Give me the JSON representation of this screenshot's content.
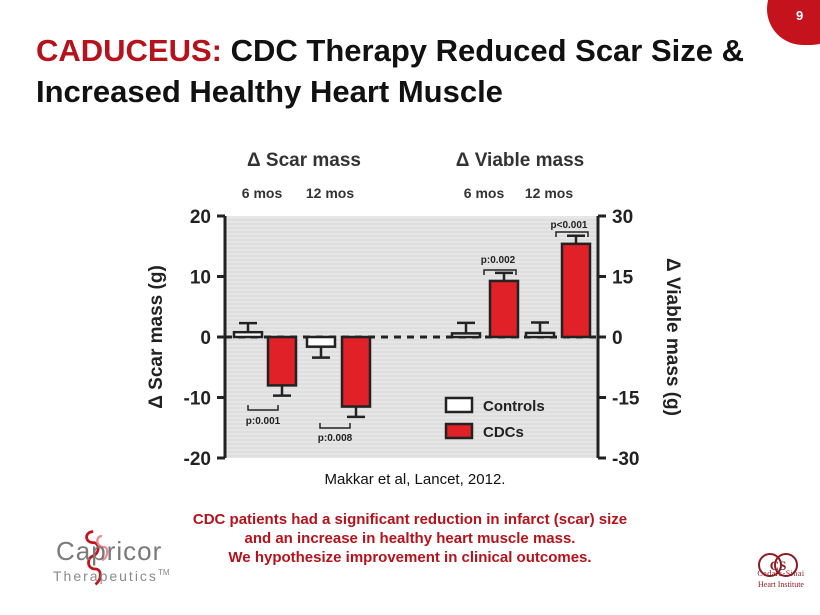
{
  "page_number": "9",
  "title": {
    "accent": "CADUCEUS:",
    "rest": "CDC Therapy Reduced Scar Size & Increased Healthy Heart Muscle"
  },
  "citation": "Makkar et al, Lancet, 2012.",
  "summary": {
    "line1": "CDC patients had a significant reduction in infarct (scar) size",
    "line2": "and an increase in healthy heart muscle mass.",
    "line3": "We hypothesize improvement in clinical outcomes."
  },
  "logos": {
    "left_name": "Capricor",
    "left_sub": "Therapeutics",
    "left_tm": "TM",
    "right_mark": "CS",
    "right_line1": "Cedars-Sinai",
    "right_line2": "Heart Institute"
  },
  "colors": {
    "accent": "#b5121b",
    "cdc": "#e02128",
    "controls": "#ffffff",
    "plot_bg": "#e6e6e6"
  },
  "chart_data": {
    "type": "bar",
    "group_titles": [
      "Δ Scar mass",
      "Δ Viable mass"
    ],
    "categories": [
      "6 mos",
      "12 mos",
      "6 mos",
      "12 mos"
    ],
    "left_axis": {
      "label": "Δ Scar mass  (g)",
      "range": [
        -20,
        20
      ],
      "ticks": [
        20,
        10,
        0,
        -10,
        -20
      ]
    },
    "right_axis": {
      "label": "Δ Viable mass  (g)",
      "range": [
        -30,
        30
      ],
      "ticks": [
        30,
        15,
        0,
        -15,
        -30
      ]
    },
    "series": [
      {
        "name": "Controls",
        "values": [
          0.8,
          -1.6,
          0.9,
          1.0
        ],
        "errors": [
          1.5,
          1.8,
          2.6,
          2.6
        ]
      },
      {
        "name": "CDCs",
        "values": [
          -8.0,
          -11.5,
          13.9,
          23.1
        ],
        "errors": [
          1.7,
          1.7,
          2.0,
          2.0
        ]
      }
    ],
    "axis_by_group": [
      "left",
      "left",
      "right",
      "right"
    ],
    "pvalues": [
      "p:0.001",
      "p:0.008",
      "p:0.002",
      "p<0.001"
    ],
    "legend": [
      "Controls",
      "CDCs"
    ],
    "zero_line": "dashed"
  }
}
